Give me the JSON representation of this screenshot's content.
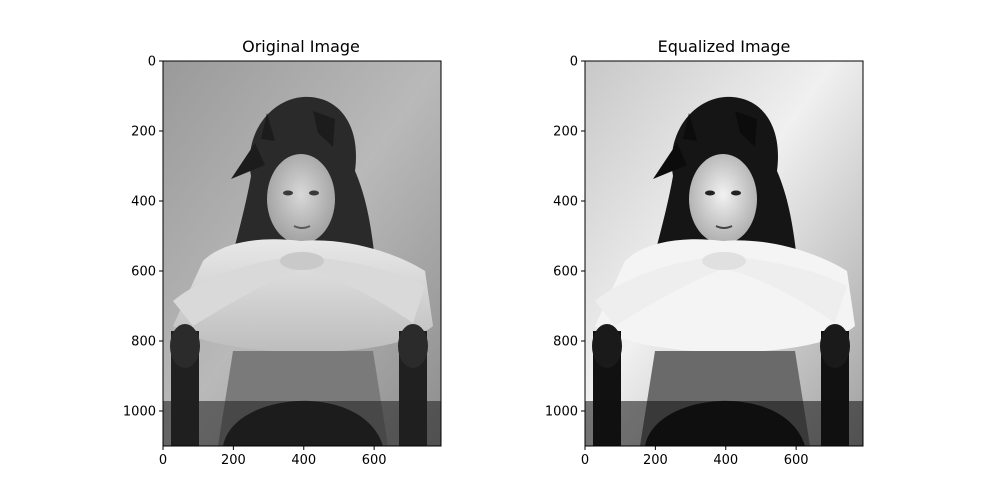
{
  "chart_data": [
    {
      "type": "image",
      "title": "Original Image",
      "content": "black-and-white portrait photograph",
      "xlim": [
        0,
        790
      ],
      "ylim": [
        1100,
        0
      ],
      "xticks": [
        0,
        200,
        400,
        600
      ],
      "yticks": [
        0,
        200,
        400,
        600,
        800,
        1000
      ],
      "grid": false
    },
    {
      "type": "image",
      "title": "Equalized Image",
      "content": "black-and-white portrait photograph, histogram equalized",
      "xlim": [
        0,
        790
      ],
      "ylim": [
        1100,
        0
      ],
      "xticks": [
        0,
        200,
        400,
        600
      ],
      "yticks": [
        0,
        200,
        400,
        600,
        800,
        1000
      ],
      "grid": false
    }
  ]
}
